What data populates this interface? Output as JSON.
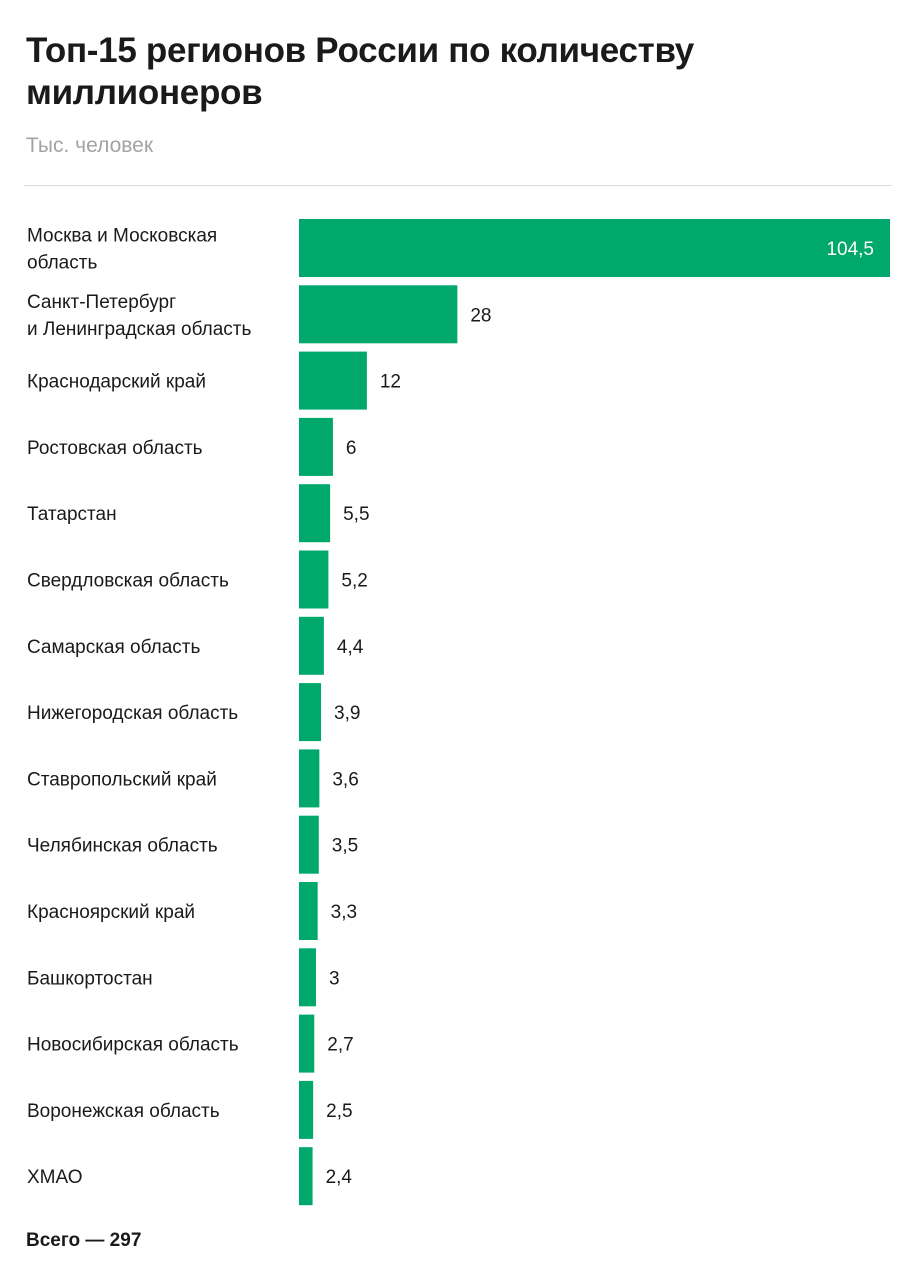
{
  "chart_data": {
    "type": "bar",
    "orientation": "horizontal",
    "title": "Топ-15 регионов России по количеству миллионеров",
    "subtitle": "Тыс. человек",
    "footer": "Всего — 297",
    "bar_color": "#00a86b",
    "label_color": "#1a1a1a",
    "inner_label_color": "#ffffff",
    "categories": [
      [
        "Москва и Московская",
        "область"
      ],
      [
        "Санкт-Петербург",
        "и Ленинградская область"
      ],
      [
        "Краснодарский край"
      ],
      [
        "Ростовская область"
      ],
      [
        "Татарстан"
      ],
      [
        "Свердловская область"
      ],
      [
        "Самарская область"
      ],
      [
        "Нижегородская область"
      ],
      [
        "Ставропольский край"
      ],
      [
        "Челябинская область"
      ],
      [
        "Красноярский край"
      ],
      [
        "Башкортостан"
      ],
      [
        "Новосибирская область"
      ],
      [
        "Воронежская область"
      ],
      [
        "ХМАО"
      ]
    ],
    "values": [
      104.5,
      28,
      12,
      6,
      5.5,
      5.2,
      4.4,
      3.9,
      3.6,
      3.5,
      3.3,
      3,
      2.7,
      2.5,
      2.4
    ],
    "value_labels": [
      "104,5",
      "28",
      "12",
      "6",
      "5,5",
      "5,2",
      "4,4",
      "3,9",
      "3,6",
      "3,5",
      "3,3",
      "3",
      "2,7",
      "2,5",
      "2,4"
    ],
    "xlim": [
      0,
      104.5
    ]
  }
}
